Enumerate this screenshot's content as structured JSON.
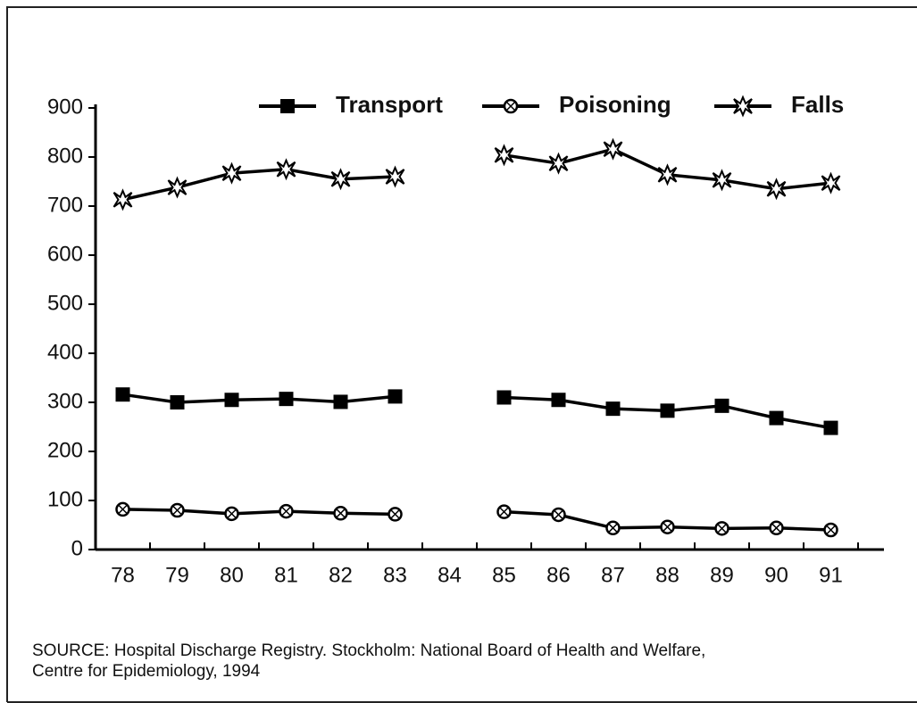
{
  "chart_data": {
    "type": "line",
    "categories": [
      "78",
      "79",
      "80",
      "81",
      "82",
      "83",
      "84",
      "85",
      "86",
      "87",
      "88",
      "89",
      "90",
      "91"
    ],
    "series": [
      {
        "name": "Transport",
        "color": "#000000",
        "marker": "square",
        "values": [
          316,
          300,
          305,
          307,
          301,
          312,
          null,
          310,
          305,
          287,
          283,
          293,
          268,
          248
        ]
      },
      {
        "name": "Poisoning",
        "color": "#000000",
        "marker": "cross-circle",
        "values": [
          82,
          80,
          73,
          78,
          74,
          72,
          null,
          77,
          71,
          44,
          46,
          43,
          44,
          40
        ]
      },
      {
        "name": "Falls",
        "color": "#000000",
        "marker": "star",
        "values": [
          713,
          738,
          767,
          775,
          755,
          760,
          null,
          804,
          787,
          816,
          764,
          753,
          735,
          747
        ]
      }
    ],
    "ylim": [
      0,
      900
    ],
    "yticks": [
      0,
      100,
      200,
      300,
      400,
      500,
      600,
      700,
      800,
      900
    ],
    "grid": false,
    "legend": "top-right",
    "source": [
      "SOURCE: Hospital Discharge Registry. Stockholm: National Board of Health and Welfare,",
      "Centre for Epidemiology, 1994"
    ]
  }
}
